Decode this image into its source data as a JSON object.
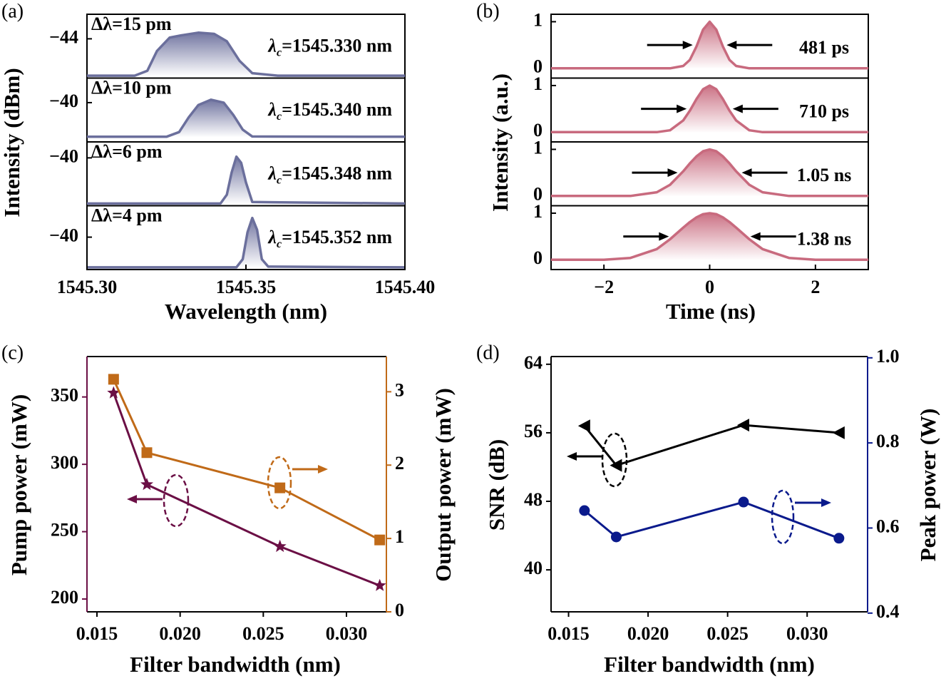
{
  "chart_data": [
    {
      "type": "stacked",
      "panel_label": "(a)",
      "x_label": "Wavelength (nm)",
      "y_label": "Intensity (dBm)",
      "color": "#6b6f9c",
      "label_color": "#7a1d4e",
      "xlim": [
        1545.3,
        1545.4
      ],
      "xticks": [
        {
          "value": 1545.3,
          "label": "1545.30"
        },
        {
          "value": 1545.35,
          "label": "1545.35"
        },
        {
          "value": 1545.4,
          "label": "1545.40"
        }
      ],
      "panels": [
        {
          "bandwidth_label": "Δλ=15 pm",
          "center_wavelength": {
            "symbol": "λ",
            "subscript": "c",
            "text": "=1545.330 nm"
          },
          "ylim": [
            -45.6,
            -43
          ],
          "yticks": [
            {
              "value": -44,
              "label": "−44"
            }
          ],
          "x": [
            1545.3,
            1545.315,
            1545.319,
            1545.322,
            1545.326,
            1545.33,
            1545.335,
            1545.34,
            1545.344,
            1545.348,
            1545.352,
            1545.36,
            1545.4
          ],
          "values": [
            -45.5,
            -45.5,
            -45.3,
            -44.5,
            -43.95,
            -43.85,
            -43.75,
            -43.8,
            -44.1,
            -44.9,
            -45.4,
            -45.5,
            -45.5
          ]
        },
        {
          "bandwidth_label": "Δλ=10 pm",
          "center_wavelength": {
            "symbol": "λ",
            "subscript": "c",
            "text": "=1545.340 nm"
          },
          "ylim": [
            -41.6,
            -39
          ],
          "yticks": [
            {
              "value": -40,
              "label": "−40"
            }
          ],
          "x": [
            1545.3,
            1545.325,
            1545.329,
            1545.332,
            1545.335,
            1545.339,
            1545.343,
            1545.346,
            1545.349,
            1545.352,
            1545.4
          ],
          "values": [
            -41.39,
            -41.39,
            -41.2,
            -40.6,
            -40.1,
            -39.88,
            -40.0,
            -40.5,
            -41.1,
            -41.38,
            -41.39
          ]
        },
        {
          "bandwidth_label": "Δλ=6 pm",
          "center_wavelength": {
            "symbol": "λ",
            "subscript": "c",
            "text": "=1545.348 nm"
          },
          "ylim": [
            -41.95,
            -39.35
          ],
          "yticks": [
            {
              "value": -40,
              "label": "−40"
            }
          ],
          "x": [
            1545.3,
            1545.342,
            1545.344,
            1545.3455,
            1545.347,
            1545.3485,
            1545.35,
            1545.352,
            1545.4
          ],
          "values": [
            -41.86,
            -41.86,
            -41.5,
            -40.6,
            -39.95,
            -40.2,
            -41.0,
            -41.8,
            -41.86
          ]
        },
        {
          "bandwidth_label": "Δλ=4 pm",
          "center_wavelength": {
            "symbol": "λ",
            "subscript": "c",
            "text": "=1545.352 nm"
          },
          "ylim": [
            -41.32,
            -38.72
          ],
          "yticks": [
            {
              "value": -40,
              "label": "−40"
            }
          ],
          "x": [
            1545.3,
            1545.347,
            1545.349,
            1545.3505,
            1545.352,
            1545.3535,
            1545.355,
            1545.357,
            1545.4
          ],
          "values": [
            -41.23,
            -41.23,
            -40.9,
            -39.8,
            -39.22,
            -39.7,
            -40.9,
            -41.2,
            -41.23
          ]
        }
      ]
    },
    {
      "type": "stacked",
      "panel_label": "(b)",
      "x_label": "Time (ns)",
      "y_label": "Intensity (a.u.)",
      "color": "#c86a7e",
      "label_color": "#8a4a14",
      "xlim": [
        -3,
        3
      ],
      "xticks": [
        {
          "value": -2,
          "label": "−2"
        },
        0,
        2
      ],
      "panels": [
        {
          "width_label": "481 ps",
          "ylim": [
            -0.21,
            1.16
          ],
          "yticks": [
            0,
            1
          ],
          "x": [
            -3,
            -2,
            -1.5,
            -1,
            -0.75,
            -0.5,
            -0.375,
            -0.25,
            -0.125,
            0,
            0.125,
            0.25,
            0.375,
            0.5,
            0.75,
            1,
            1.5,
            2,
            3
          ],
          "values": [
            0,
            0,
            0,
            0,
            0,
            0.05,
            0.18,
            0.47,
            0.83,
            1,
            0.83,
            0.47,
            0.18,
            0.05,
            0,
            0,
            0,
            0,
            0
          ]
        },
        {
          "width_label": "710 ps",
          "ylim": [
            -0.21,
            1.16
          ],
          "yticks": [
            0,
            1
          ],
          "x": [
            -3,
            -2,
            -1.5,
            -1,
            -0.75,
            -0.5,
            -0.375,
            -0.25,
            -0.125,
            0,
            0.125,
            0.25,
            0.375,
            0.5,
            0.75,
            1,
            1.5,
            2,
            3
          ],
          "values": [
            0,
            0,
            0,
            0,
            0.04,
            0.25,
            0.46,
            0.71,
            0.92,
            1,
            0.92,
            0.71,
            0.46,
            0.25,
            0.04,
            0,
            0,
            0,
            0
          ]
        },
        {
          "width_label": "1.05 ns",
          "ylim": [
            -0.21,
            1.16
          ],
          "yticks": [
            0,
            1
          ],
          "x": [
            -3,
            -2,
            -1.5,
            -1,
            -0.75,
            -0.5,
            -0.375,
            -0.25,
            -0.125,
            0,
            0.125,
            0.25,
            0.375,
            0.5,
            0.75,
            1,
            1.5,
            2,
            3
          ],
          "values": [
            0,
            0,
            0,
            0.08,
            0.24,
            0.53,
            0.7,
            0.85,
            0.96,
            1,
            0.96,
            0.85,
            0.7,
            0.53,
            0.24,
            0.08,
            0,
            0,
            0
          ]
        },
        {
          "width_label": "1.38 ns",
          "ylim": [
            -0.21,
            1.16
          ],
          "yticks": [
            0,
            1
          ],
          "x": [
            -3,
            -2,
            -1.5,
            -1,
            -0.75,
            -0.5,
            -0.375,
            -0.25,
            -0.125,
            0,
            0.125,
            0.25,
            0.375,
            0.5,
            0.75,
            1,
            1.5,
            2,
            3
          ],
          "values": [
            0,
            0,
            0.04,
            0.23,
            0.44,
            0.69,
            0.81,
            0.91,
            0.98,
            1,
            0.98,
            0.91,
            0.81,
            0.69,
            0.44,
            0.23,
            0.04,
            0,
            0
          ]
        }
      ]
    },
    {
      "type": "dual",
      "panel_label": "(c)",
      "x_label": "Filter bandwidth (nm)",
      "y_label": "Pump power (mW)",
      "y2_label": "Output power (mW)",
      "xlim": [
        0.0144,
        0.0324
      ],
      "xticks": [
        0.015,
        {
          "value": 0.02,
          "label": "0.020"
        },
        0.025,
        {
          "value": 0.03,
          "label": "0.030"
        }
      ],
      "ylim": [
        190.5,
        380
      ],
      "yticks": [
        200,
        250,
        300,
        350
      ],
      "y2lim": [
        0,
        3.48
      ],
      "y2ticks": [
        0,
        1,
        2,
        3
      ],
      "y_axis_color": "#6b0f45",
      "y2_axis_color": "#c06a18",
      "x": [
        0.016,
        0.018,
        0.026,
        0.032
      ],
      "series": [
        {
          "color": "#6b0f45",
          "marker": "star",
          "values": [
            353,
            285,
            239,
            210
          ]
        },
        {
          "color": "#c06a18",
          "marker": "square",
          "axis": "y2",
          "values": [
            3.17,
            2.17,
            1.69,
            0.98
          ]
        }
      ]
    },
    {
      "type": "dual",
      "panel_label": "(d)",
      "x_label": "Filter bandwidth (nm)",
      "y_label": "SNR (dB)",
      "y2_label": "Peak power (W)",
      "xlim": [
        0.0139,
        0.0338
      ],
      "xticks": [
        0.015,
        {
          "value": 0.02,
          "label": "0.020"
        },
        0.025,
        {
          "value": 0.03,
          "label": "0.030"
        }
      ],
      "ylim": [
        35.1,
        64.9
      ],
      "yticks": [
        40,
        48,
        56,
        64
      ],
      "y2lim": [
        0.403,
        1.003
      ],
      "y2ticks": [
        0.4,
        0.6,
        0.8,
        {
          "value": 1,
          "label": "1.0"
        }
      ],
      "y_axis_color": "#000000",
      "y2_axis_color": "#0a1a8c",
      "x": [
        0.016,
        0.018,
        0.026,
        0.032
      ],
      "series": [
        {
          "color": "#000000",
          "marker": "triangle-left",
          "values": [
            56.8,
            52.2,
            56.9,
            56.0
          ]
        },
        {
          "color": "#0a1a8c",
          "marker": "circle",
          "axis": "y2",
          "values": [
            0.641,
            0.579,
            0.661,
            0.576
          ]
        }
      ]
    }
  ]
}
